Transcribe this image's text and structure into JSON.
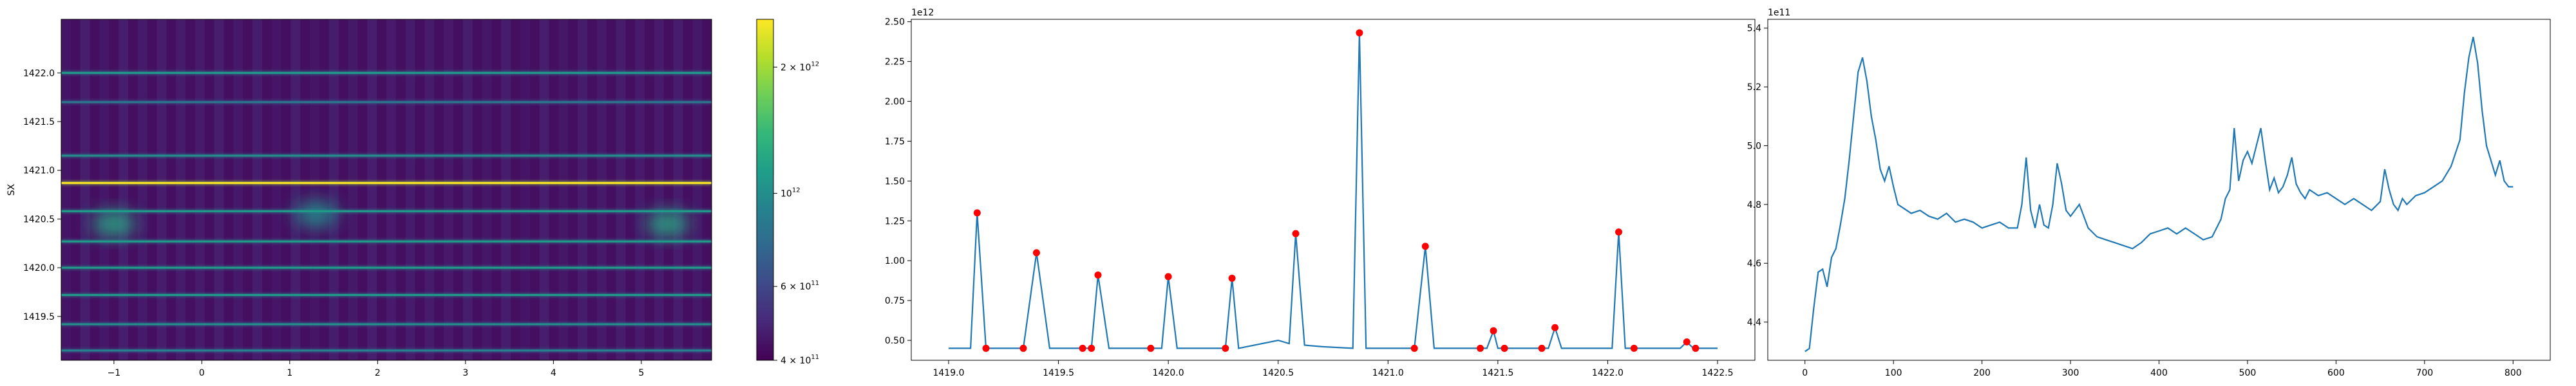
{
  "colors": {
    "viridis": [
      "#440154",
      "#482878",
      "#3e4989",
      "#31688e",
      "#26828e",
      "#1f9e89",
      "#35b779",
      "#6ece58",
      "#b5de2b",
      "#fde725"
    ],
    "line": "#1f77b4",
    "peak_marker": "#ff0000",
    "axis": "#000000"
  },
  "chart_data": [
    {
      "type": "heatmap",
      "ylabel": "SX",
      "xlim": [
        -1.6,
        5.8
      ],
      "ylim": [
        1419.05,
        1422.55
      ],
      "xticks": [
        -1,
        0,
        1,
        2,
        3,
        4,
        5
      ],
      "xtick_labels": [
        "−1",
        "0",
        "1",
        "2",
        "3",
        "4",
        "5"
      ],
      "yticks": [
        1419.5,
        1420.0,
        1420.5,
        1421.0,
        1421.5,
        1422.0
      ],
      "ytick_labels": [
        "1419.5",
        "1420.0",
        "1420.5",
        "1421.0",
        "1421.5",
        "1422.0"
      ],
      "rows": [
        {
          "y": 1422.0,
          "level": 0.55
        },
        {
          "y": 1421.7,
          "level": 0.4
        },
        {
          "y": 1421.15,
          "level": 0.5
        },
        {
          "y": 1420.87,
          "level": 1.0
        },
        {
          "y": 1420.58,
          "level": 0.55
        },
        {
          "y": 1420.27,
          "level": 0.55
        },
        {
          "y": 1420.0,
          "level": 0.55
        },
        {
          "y": 1419.72,
          "level": 0.55
        },
        {
          "y": 1419.42,
          "level": 0.5
        },
        {
          "y": 1419.15,
          "level": 0.45
        }
      ],
      "blobs": [
        {
          "x": -1.0,
          "y": 1420.45,
          "level": 0.6
        },
        {
          "x": 1.3,
          "y": 1420.55,
          "level": 0.5
        },
        {
          "x": 5.3,
          "y": 1420.45,
          "level": 0.6
        }
      ],
      "colorbar": {
        "scale": "log",
        "range": [
          400000000000.0,
          2600000000000.0
        ],
        "ticks": [
          {
            "value": 400000000000.0,
            "base": "4 × 10",
            "exp": "11"
          },
          {
            "value": 600000000000.0,
            "base": "6 × 10",
            "exp": "11"
          },
          {
            "value": 1000000000000.0,
            "base": "10",
            "exp": "12"
          },
          {
            "value": 2000000000000.0,
            "base": "2 × 10",
            "exp": "12"
          }
        ]
      }
    },
    {
      "type": "line",
      "offset_label": "1e12",
      "xlim": [
        1418.83,
        1422.67
      ],
      "ylim": [
        0.375,
        2.515
      ],
      "xticks": [
        1419.0,
        1419.5,
        1420.0,
        1420.5,
        1421.0,
        1421.5,
        1422.0,
        1422.5
      ],
      "xtick_labels": [
        "1419.0",
        "1419.5",
        "1420.0",
        "1420.5",
        "1421.0",
        "1421.5",
        "1422.0",
        "1422.5"
      ],
      "yticks": [
        0.5,
        0.75,
        1.0,
        1.25,
        1.5,
        1.75,
        2.0,
        2.25,
        2.5
      ],
      "ytick_labels": [
        "0.50",
        "0.75",
        "1.00",
        "1.25",
        "1.50",
        "1.75",
        "2.00",
        "2.25",
        "2.50"
      ],
      "x": [
        1419.0,
        1419.1,
        1419.13,
        1419.17,
        1419.23,
        1419.34,
        1419.4,
        1419.46,
        1419.61,
        1419.65,
        1419.68,
        1419.73,
        1419.92,
        1419.97,
        1420.0,
        1420.04,
        1420.26,
        1420.29,
        1420.32,
        1420.5,
        1420.55,
        1420.58,
        1420.62,
        1420.7,
        1420.84,
        1420.87,
        1420.9,
        1421.12,
        1421.17,
        1421.21,
        1421.42,
        1421.45,
        1421.48,
        1421.5,
        1421.53,
        1421.7,
        1421.73,
        1421.76,
        1421.79,
        1422.02,
        1422.05,
        1422.08,
        1422.12,
        1422.33,
        1422.36,
        1422.39,
        1422.5
      ],
      "y": [
        0.45,
        0.45,
        1.3,
        0.45,
        0.45,
        0.45,
        1.05,
        0.45,
        0.45,
        0.45,
        0.91,
        0.45,
        0.45,
        0.45,
        0.9,
        0.45,
        0.45,
        0.89,
        0.45,
        0.5,
        0.48,
        1.17,
        0.47,
        0.46,
        0.45,
        2.43,
        0.45,
        0.45,
        1.09,
        0.45,
        0.45,
        0.45,
        0.56,
        0.45,
        0.45,
        0.45,
        0.45,
        0.58,
        0.45,
        0.45,
        1.18,
        0.45,
        0.45,
        0.45,
        0.49,
        0.45,
        0.45
      ],
      "peaks_x": [
        1419.13,
        1419.17,
        1419.34,
        1419.4,
        1419.61,
        1419.65,
        1419.68,
        1419.92,
        1420.0,
        1420.26,
        1420.29,
        1420.58,
        1420.87,
        1421.12,
        1421.17,
        1421.42,
        1421.48,
        1421.53,
        1421.7,
        1421.76,
        1422.05,
        1422.12,
        1422.36,
        1422.4
      ],
      "peaks_y": [
        1.3,
        0.45,
        0.45,
        1.05,
        0.45,
        0.45,
        0.91,
        0.45,
        0.9,
        0.45,
        0.89,
        1.17,
        2.43,
        0.45,
        1.09,
        0.45,
        0.56,
        0.45,
        0.45,
        0.58,
        1.18,
        0.45,
        0.49,
        0.45
      ]
    },
    {
      "type": "line",
      "offset_label": "1e11",
      "xlim": [
        -42,
        842
      ],
      "ylim": [
        4.27,
        5.43
      ],
      "xticks": [
        0,
        100,
        200,
        300,
        400,
        500,
        600,
        700,
        800
      ],
      "xtick_labels": [
        "0",
        "100",
        "200",
        "300",
        "400",
        "500",
        "600",
        "700",
        "800"
      ],
      "yticks": [
        4.4,
        4.6,
        4.8,
        5.0,
        5.2,
        5.4
      ],
      "ytick_labels": [
        "4.4",
        "4.6",
        "4.8",
        "5.0",
        "5.2",
        "5.4"
      ],
      "x": [
        0,
        5,
        10,
        15,
        20,
        25,
        30,
        35,
        40,
        45,
        50,
        55,
        60,
        65,
        70,
        75,
        80,
        85,
        90,
        95,
        100,
        105,
        110,
        120,
        130,
        140,
        150,
        160,
        170,
        180,
        190,
        200,
        210,
        220,
        230,
        240,
        245,
        250,
        255,
        260,
        265,
        270,
        275,
        280,
        285,
        290,
        295,
        300,
        310,
        320,
        330,
        340,
        350,
        360,
        370,
        380,
        390,
        400,
        410,
        420,
        430,
        440,
        450,
        460,
        470,
        475,
        480,
        485,
        490,
        495,
        500,
        505,
        510,
        515,
        520,
        525,
        530,
        535,
        540,
        545,
        550,
        555,
        560,
        565,
        570,
        580,
        590,
        600,
        610,
        620,
        630,
        640,
        650,
        655,
        660,
        665,
        670,
        675,
        680,
        690,
        700,
        710,
        720,
        730,
        740,
        745,
        750,
        755,
        760,
        765,
        770,
        775,
        780,
        785,
        790,
        795,
        800
      ],
      "y": [
        4.3,
        4.31,
        4.45,
        4.57,
        4.58,
        4.52,
        4.62,
        4.65,
        4.73,
        4.82,
        4.95,
        5.1,
        5.25,
        5.3,
        5.22,
        5.1,
        5.02,
        4.92,
        4.88,
        4.93,
        4.86,
        4.8,
        4.79,
        4.77,
        4.78,
        4.76,
        4.75,
        4.77,
        4.74,
        4.75,
        4.74,
        4.72,
        4.73,
        4.74,
        4.72,
        4.72,
        4.8,
        4.96,
        4.78,
        4.72,
        4.8,
        4.73,
        4.72,
        4.8,
        4.94,
        4.87,
        4.78,
        4.76,
        4.8,
        4.72,
        4.69,
        4.68,
        4.67,
        4.66,
        4.65,
        4.67,
        4.7,
        4.71,
        4.72,
        4.7,
        4.72,
        4.7,
        4.68,
        4.69,
        4.75,
        4.82,
        4.85,
        5.06,
        4.88,
        4.95,
        4.98,
        4.94,
        5.0,
        5.06,
        4.95,
        4.85,
        4.89,
        4.84,
        4.86,
        4.9,
        4.96,
        4.87,
        4.84,
        4.82,
        4.85,
        4.83,
        4.84,
        4.82,
        4.8,
        4.82,
        4.8,
        4.78,
        4.81,
        4.92,
        4.85,
        4.8,
        4.78,
        4.82,
        4.8,
        4.83,
        4.84,
        4.86,
        4.88,
        4.93,
        5.02,
        5.18,
        5.3,
        5.37,
        5.28,
        5.12,
        5.0,
        4.95,
        4.9,
        4.95,
        4.88,
        4.86,
        4.86
      ],
      "peaks_x": [],
      "peaks_y": []
    }
  ]
}
